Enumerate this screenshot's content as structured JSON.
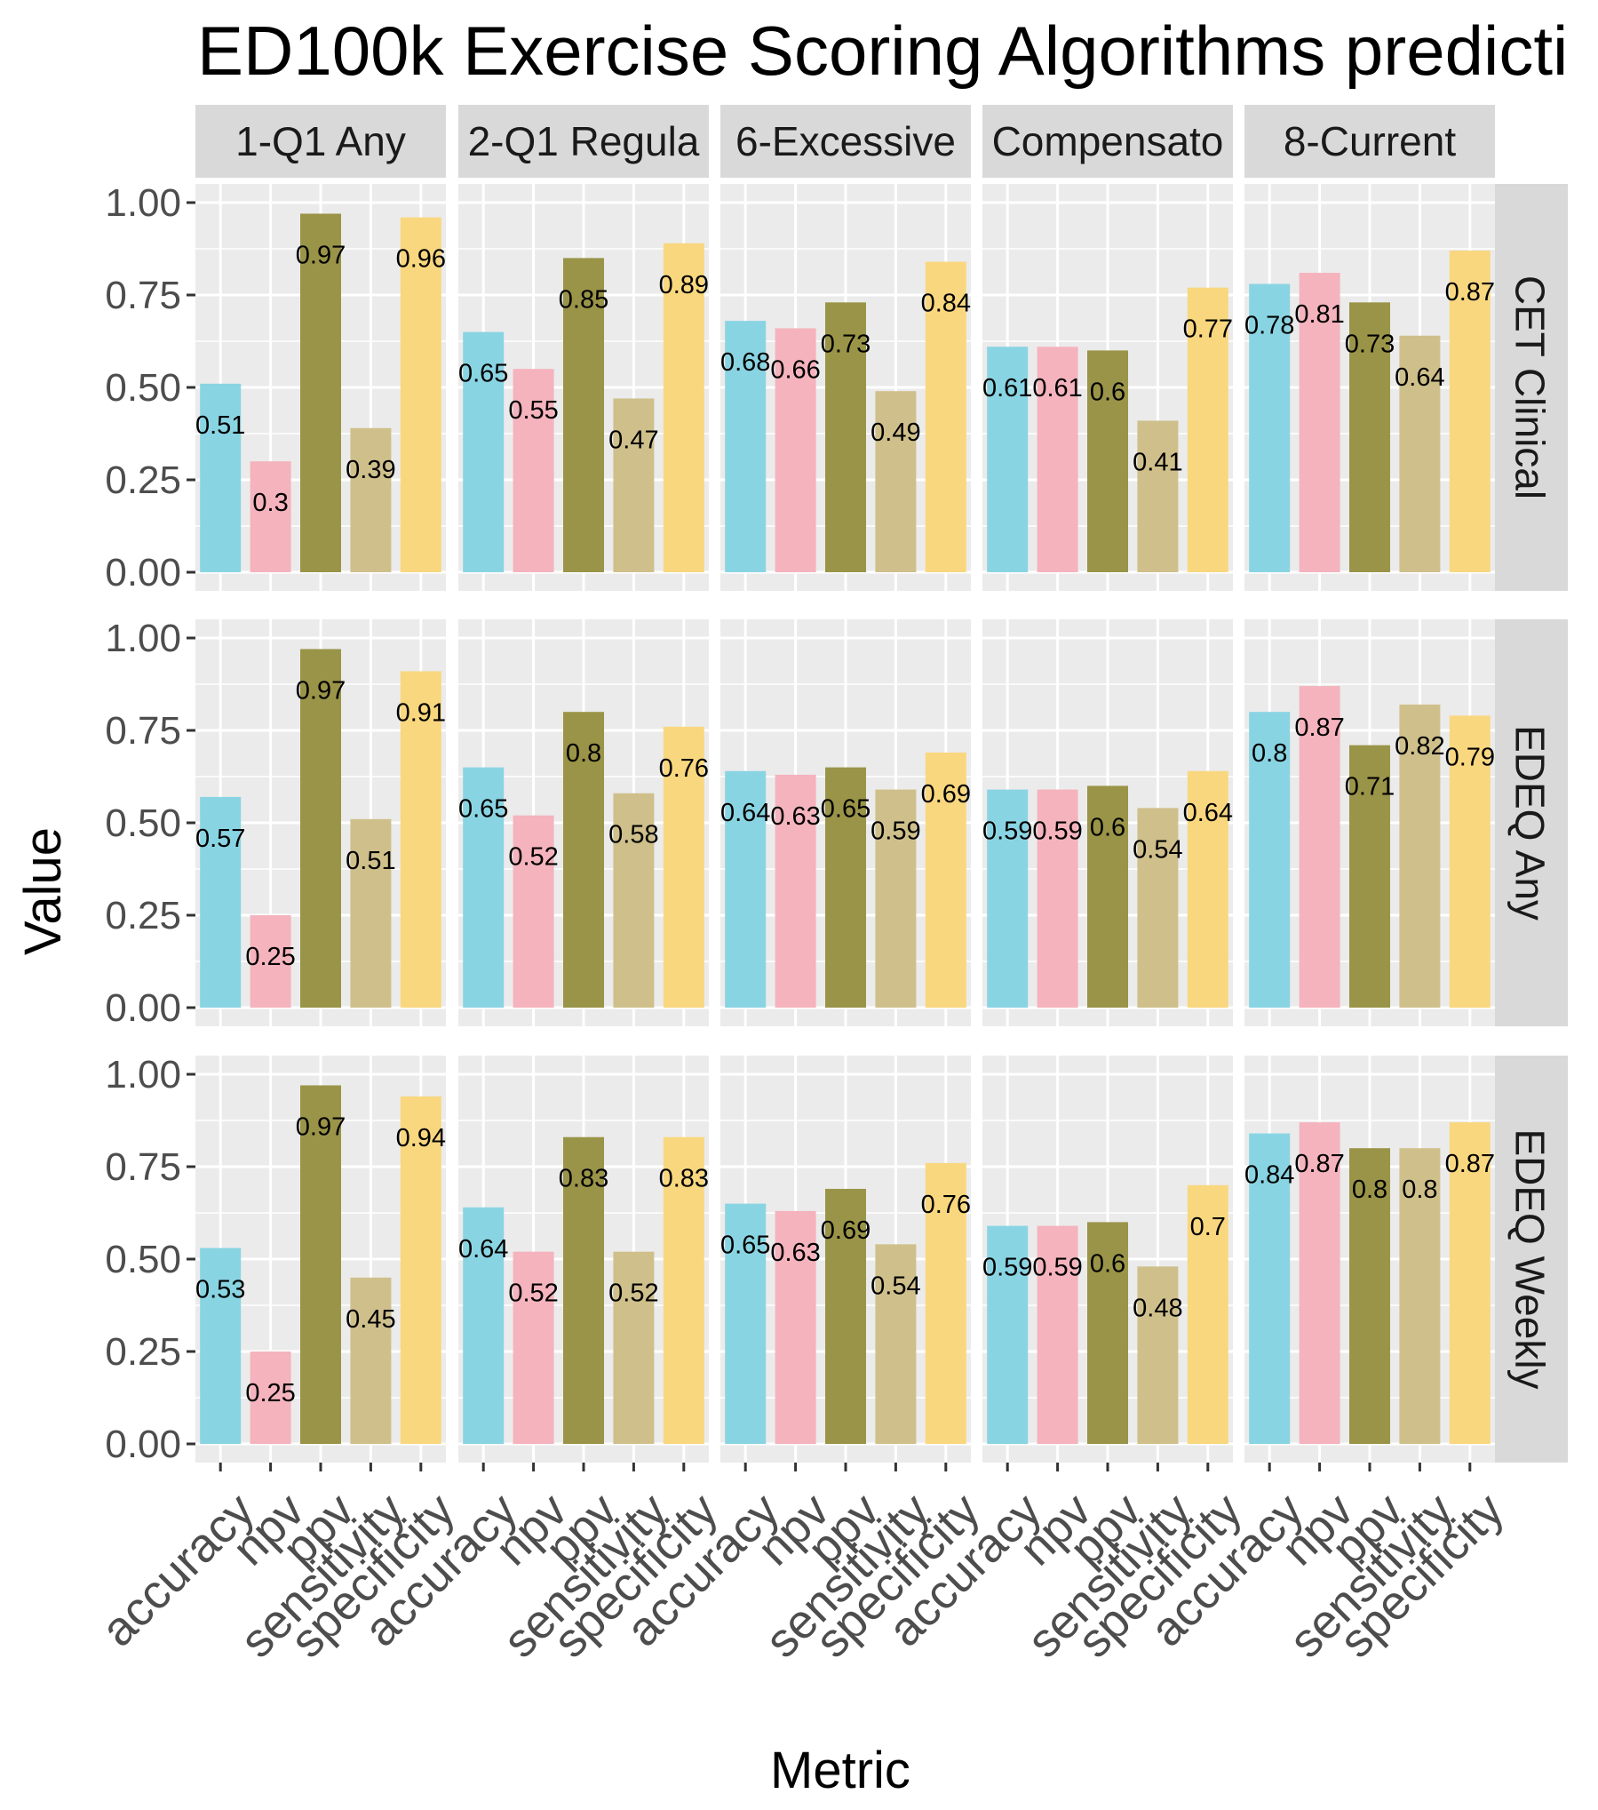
{
  "chart_data": {
    "type": "bar",
    "title": "ED100k Exercise Scoring Algorithms predicti",
    "xlabel": "Metric",
    "ylabel": "Value",
    "ylim": [
      0,
      1
    ],
    "yticks": [
      "0.00",
      "0.25",
      "0.50",
      "0.75",
      "1.00"
    ],
    "categories": [
      "accuracy",
      "npv",
      "ppv",
      "sensitivity",
      "specificity"
    ],
    "colors": [
      "#89d4e3",
      "#f5b3bd",
      "#9a9448",
      "#cfc08b",
      "#f9d77e"
    ],
    "facet_columns": [
      "1-Q1 Any",
      "2-Q1 Regula",
      "6-Excessive",
      "Compensato",
      "8-Current"
    ],
    "facet_rows": [
      "CET Clinical",
      "EDEQ Any",
      "EDEQ Weekly"
    ],
    "panels": [
      [
        {
          "values": [
            0.51,
            0.3,
            0.97,
            0.39,
            0.96
          ],
          "labels": [
            "0.51",
            "0.3",
            "0.97",
            "0.39",
            "0.96"
          ]
        },
        {
          "values": [
            0.65,
            0.55,
            0.85,
            0.47,
            0.89
          ],
          "labels": [
            "0.65",
            "0.55",
            "0.85",
            "0.47",
            "0.89"
          ]
        },
        {
          "values": [
            0.68,
            0.66,
            0.73,
            0.49,
            0.84
          ],
          "labels": [
            "0.68",
            "0.66",
            "0.73",
            "0.49",
            "0.84"
          ]
        },
        {
          "values": [
            0.61,
            0.61,
            0.6,
            0.41,
            0.77
          ],
          "labels": [
            "0.61",
            "0.61",
            "0.6",
            "0.41",
            "0.77"
          ]
        },
        {
          "values": [
            0.78,
            0.81,
            0.73,
            0.64,
            0.87
          ],
          "labels": [
            "0.78",
            "0.81",
            "0.73",
            "0.64",
            "0.87"
          ]
        }
      ],
      [
        {
          "values": [
            0.57,
            0.25,
            0.97,
            0.51,
            0.91
          ],
          "labels": [
            "0.57",
            "0.25",
            "0.97",
            "0.51",
            "0.91"
          ]
        },
        {
          "values": [
            0.65,
            0.52,
            0.8,
            0.58,
            0.76
          ],
          "labels": [
            "0.65",
            "0.52",
            "0.8",
            "0.58",
            "0.76"
          ]
        },
        {
          "values": [
            0.64,
            0.63,
            0.65,
            0.59,
            0.69
          ],
          "labels": [
            "0.64",
            "0.63",
            "0.65",
            "0.59",
            "0.69"
          ]
        },
        {
          "values": [
            0.59,
            0.59,
            0.6,
            0.54,
            0.64
          ],
          "labels": [
            "0.59",
            "0.59",
            "0.6",
            "0.54",
            "0.64"
          ]
        },
        {
          "values": [
            0.8,
            0.87,
            0.71,
            0.82,
            0.79
          ],
          "labels": [
            "0.8",
            "0.87",
            "0.71",
            "0.82",
            "0.79"
          ]
        }
      ],
      [
        {
          "values": [
            0.53,
            0.25,
            0.97,
            0.45,
            0.94
          ],
          "labels": [
            "0.53",
            "0.25",
            "0.97",
            "0.45",
            "0.94"
          ]
        },
        {
          "values": [
            0.64,
            0.52,
            0.83,
            0.52,
            0.83
          ],
          "labels": [
            "0.64",
            "0.52",
            "0.83",
            "0.52",
            "0.83"
          ]
        },
        {
          "values": [
            0.65,
            0.63,
            0.69,
            0.54,
            0.76
          ],
          "labels": [
            "0.65",
            "0.63",
            "0.69",
            "0.54",
            "0.76"
          ]
        },
        {
          "values": [
            0.59,
            0.59,
            0.6,
            0.48,
            0.7
          ],
          "labels": [
            "0.59",
            "0.59",
            "0.6",
            "0.48",
            "0.7"
          ]
        },
        {
          "values": [
            0.84,
            0.87,
            0.8,
            0.8,
            0.87
          ],
          "labels": [
            "0.84",
            "0.87",
            "0.8",
            "0.8",
            "0.87"
          ]
        }
      ]
    ]
  }
}
